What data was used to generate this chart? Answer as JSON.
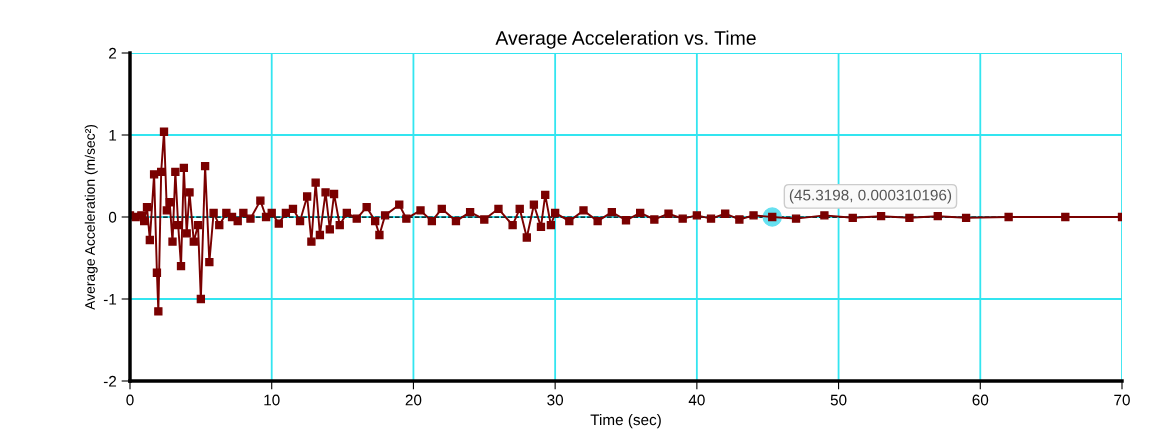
{
  "chart_data": {
    "type": "line",
    "title": "Average Acceleration vs. Time",
    "xlabel": "Time (sec)",
    "ylabel": "Average Acceleration (m/sec²)",
    "x": [
      0.0,
      0.4,
      0.8,
      1.0,
      1.2,
      1.4,
      1.7,
      1.9,
      2.0,
      2.2,
      2.4,
      2.6,
      2.8,
      3.0,
      3.2,
      3.4,
      3.6,
      3.8,
      4.0,
      4.2,
      4.5,
      4.8,
      5.0,
      5.3,
      5.6,
      5.9,
      6.3,
      6.8,
      7.2,
      7.6,
      8.0,
      8.5,
      9.2,
      9.6,
      10.0,
      10.5,
      11.0,
      11.5,
      12.0,
      12.5,
      12.8,
      13.1,
      13.4,
      13.8,
      14.1,
      14.4,
      14.8,
      15.3,
      16.0,
      16.7,
      17.3,
      17.6,
      18.0,
      19.0,
      19.5,
      20.5,
      21.3,
      22.0,
      23.0,
      24.0,
      25.0,
      26.0,
      27.0,
      27.5,
      28.0,
      28.5,
      29.0,
      29.3,
      29.7,
      30.0,
      31.0,
      32.0,
      33.0,
      34.0,
      35.0,
      36.0,
      37.0,
      38.0,
      39.0,
      40.0,
      41.0,
      42.0,
      43.0,
      44.0,
      45.3198,
      47.0,
      49.0,
      51.0,
      53.0,
      55.0,
      57.0,
      59.0,
      62.0,
      66.0,
      70.0
    ],
    "series": [
      {
        "color": "#7a0000",
        "values": [
          0.02,
          0.0,
          0.02,
          -0.05,
          0.12,
          -0.28,
          0.52,
          -0.68,
          -1.15,
          0.55,
          1.04,
          0.08,
          0.18,
          -0.3,
          0.55,
          -0.1,
          -0.6,
          0.6,
          -0.2,
          0.3,
          -0.3,
          -0.1,
          -1.0,
          0.62,
          -0.55,
          0.05,
          -0.1,
          0.05,
          0.0,
          -0.05,
          0.05,
          -0.02,
          0.2,
          0.0,
          0.05,
          -0.08,
          0.05,
          0.1,
          -0.05,
          0.25,
          -0.3,
          0.42,
          -0.22,
          0.3,
          -0.15,
          0.28,
          -0.1,
          0.05,
          -0.02,
          0.12,
          -0.05,
          -0.22,
          0.02,
          0.15,
          -0.02,
          0.08,
          -0.05,
          0.1,
          -0.05,
          0.06,
          -0.03,
          0.1,
          -0.1,
          0.1,
          -0.25,
          0.15,
          -0.12,
          0.27,
          -0.1,
          0.05,
          -0.05,
          0.08,
          -0.05,
          0.06,
          -0.04,
          0.05,
          -0.03,
          0.04,
          -0.02,
          0.02,
          -0.02,
          0.04,
          -0.03,
          0.02,
          0.0,
          -0.02,
          0.02,
          -0.01,
          0.01,
          -0.01,
          0.01,
          -0.01,
          0.0,
          0.0,
          0.0
        ]
      }
    ],
    "xlim": [
      0,
      70
    ],
    "xticks": [
      0,
      10,
      20,
      30,
      40,
      50,
      60,
      70
    ],
    "ylim": [
      -2,
      2
    ],
    "yticks": [
      -2,
      -1,
      0,
      1,
      2
    ],
    "grid": true,
    "marker": "square",
    "line_style": "solid",
    "legend": false,
    "ref_lines": [
      {
        "axis": "y",
        "value": 0,
        "color": "#000000",
        "line_style": "dashed"
      }
    ],
    "annotations": [
      {
        "text": "(45.3198, 0.000310196)",
        "x": 45.3198,
        "y": 0
      }
    ]
  }
}
